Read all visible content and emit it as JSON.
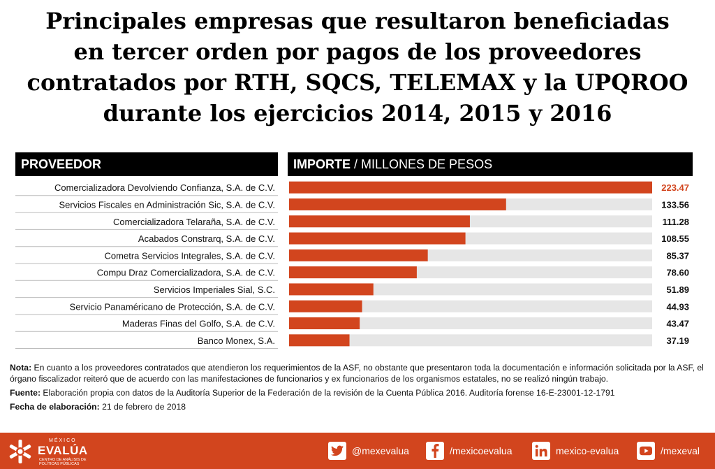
{
  "title": {
    "line1": "Principales empresas  que resultaron beneficiadas",
    "line2": "en tercer orden por pagos de los proveedores",
    "line3": "contratados por RTH, SQCS, TELEMAX y la UPQROO",
    "line4": "durante los ejercicios 2014, 2015 y 2016"
  },
  "header": {
    "left": "PROVEEDOR",
    "right_bold": "IMPORTE",
    "right_rest": " / MILLONES DE PESOS"
  },
  "colors": {
    "bar": "#d2451e",
    "track": "#e6e6e6",
    "highlight_value": "#d2451e",
    "footer": "#d2451e"
  },
  "chart_data": {
    "type": "bar",
    "orientation": "horizontal",
    "ylabel": "PROVEEDOR",
    "xlabel": "IMPORTE / MILLONES DE PESOS",
    "xlim": [
      0,
      223.47
    ],
    "categories": [
      "Comercializadora Devolviendo Confianza, S.A. de C.V.",
      "Servicios Fiscales en Administración Sic, S.A. de C.V.",
      "Comercializadora Telaraña, S.A. de C.V.",
      "Acabados Constrarq, S.A. de C.V.",
      "Cometra Servicios Integrales, S.A. de C.V.",
      "Compu Draz Comercializadora, S.A. de C.V.",
      "Servicios Imperiales Sial, S.C.",
      "Servicio Panaméricano de Protección, S.A. de C.V.",
      "Maderas Finas del Golfo, S.A. de C.V.",
      "Banco Monex, S.A."
    ],
    "values": [
      223.47,
      133.56,
      111.28,
      108.55,
      85.37,
      78.6,
      51.89,
      44.93,
      43.47,
      37.19
    ],
    "value_labels": [
      "223.47",
      "133.56",
      "111.28",
      "108.55",
      "85.37",
      "78.60",
      "51.89",
      "44.93",
      "43.47",
      "37.19"
    ]
  },
  "notes": {
    "nota_label": "Nota:",
    "nota_text": " En cuanto a los proveedores contratados  que atendieron los requerimientos de la ASF, no obstante que presentaron toda la documentación e información solicitada por la ASF, el órgano fiscalizador reiteró que de  acuerdo con las manifestaciones de funcionarios y ex funcionarios  de los organismos estatales, no se realizó ningún trabajo.",
    "fuente_label": "Fuente:",
    "fuente_text": " Elaboración propia con datos de la  Auditoría Superior de la Federación de la revisión de la Cuenta Pública 2016.  Auditoría forense 16-E-23001-12-1791",
    "fecha_label": "Fecha de elaboración:",
    "fecha_text": " 21 de febrero de 2018"
  },
  "footer": {
    "logo_top": "MÉXICO",
    "logo_name": "EVALÚA",
    "logo_sub": "CENTRO DE ANÁLISIS DE POLÍTICAS PÚBLICAS",
    "twitter": "@mexevalua",
    "facebook": "/mexicoevalua",
    "linkedin": "mexico-evalua",
    "youtube": "/mexeval"
  }
}
